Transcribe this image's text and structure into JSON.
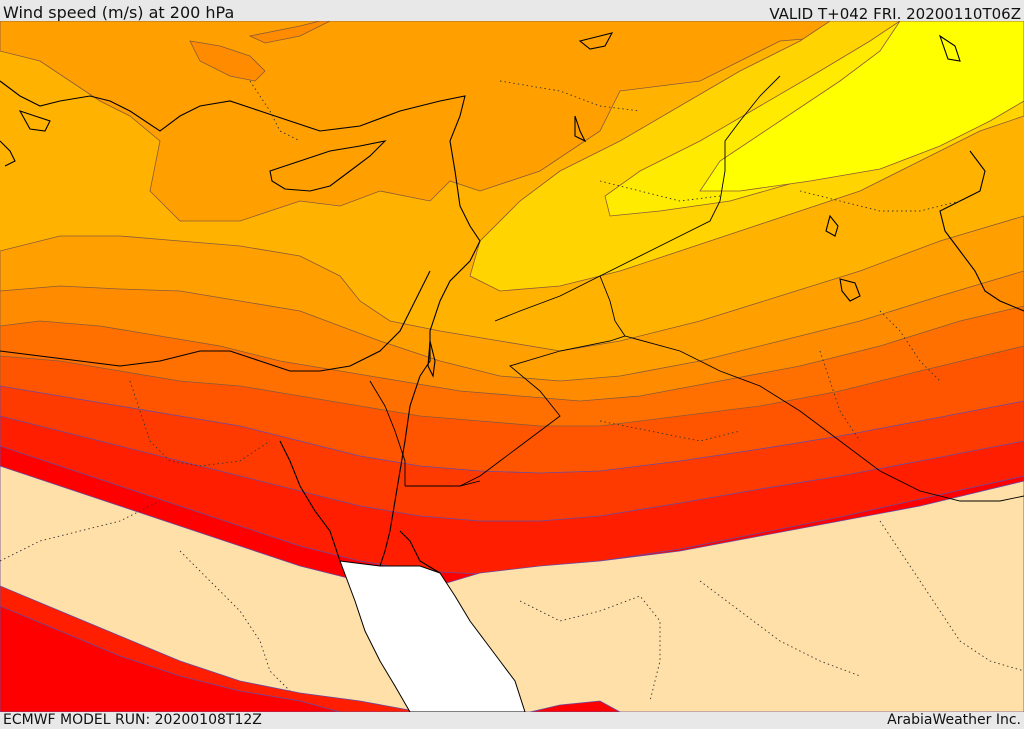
{
  "header": {
    "title": "Wind speed (m/s) at 200 hPa",
    "valid": "VALID T+042 FRI. 20200110T06Z"
  },
  "footer": {
    "model_run": "ECMWF MODEL RUN: 20200108T12Z",
    "credit": "ArabiaWeather Inc."
  },
  "palette": {
    "light": "#ffe0a8",
    "l1": "#ffb300",
    "l2": "#ffa000",
    "l3": "#ff8c00",
    "l4": "#ff7000",
    "l5": "#ff5500",
    "l6": "#ff3a00",
    "l7": "#ff1e00",
    "l8": "#ff0000",
    "y1": "#ffd400",
    "y2": "#ffeb00",
    "y3": "#ffff00",
    "sea": "#ffffff"
  }
}
